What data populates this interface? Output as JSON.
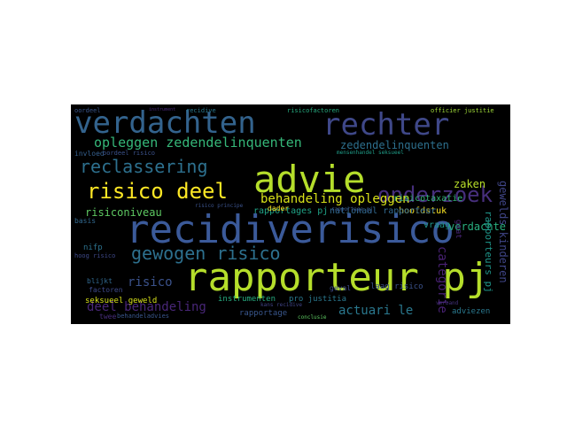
{
  "cloud": {
    "background": "#000000",
    "words": [
      {
        "text": "recidiverisico",
        "color": "#3b5a9a"
      },
      {
        "text": "rapporteur pj",
        "color": "#b5de2b"
      },
      {
        "text": "advie",
        "color": "#b5de2b"
      },
      {
        "text": "rechter",
        "color": "#3f4889"
      },
      {
        "text": "verdachten",
        "color": "#33638d"
      },
      {
        "text": "onderzoek",
        "color": "#472f7d"
      },
      {
        "text": "risico deel",
        "color": "#fde725"
      },
      {
        "text": "gewogen risico",
        "color": "#2d708e"
      },
      {
        "text": "reclassering",
        "color": "#2d708e"
      },
      {
        "text": "opleggen zedendelinquenten",
        "color": "#35b779"
      },
      {
        "text": "behandeling opleggen",
        "color": "#d8e219"
      },
      {
        "text": "risiconiveau",
        "color": "#5ec962"
      },
      {
        "text": "deel behandeling",
        "color": "#482677"
      },
      {
        "text": "zaken",
        "color": "#b8de29"
      },
      {
        "text": "verdachte",
        "color": "#29af7f"
      },
      {
        "text": "zedendelinquenten",
        "color": "#2d708e"
      },
      {
        "text": "actuari le",
        "color": "#2a788e"
      },
      {
        "text": "risico",
        "color": "#3b528b"
      },
      {
        "text": "hoofdstuk",
        "color": "#fde725"
      },
      {
        "text": "nationaal rapporteur",
        "color": "#31688e"
      },
      {
        "text": "risicotaxatie",
        "color": "#35b779"
      },
      {
        "text": "vraag",
        "color": "#1f968b"
      },
      {
        "text": "rapportages pj",
        "color": "#20a386"
      },
      {
        "text": "instrumenten",
        "color": "#27ad81"
      },
      {
        "text": "pro justitia",
        "color": "#2a788e"
      },
      {
        "text": "seksueel geweld",
        "color": "#d8e219"
      },
      {
        "text": "adviezen",
        "color": "#2a788e"
      },
      {
        "text": "rapportage",
        "color": "#39568c"
      },
      {
        "text": "oordeel",
        "color": "#39568c"
      },
      {
        "text": "recidive",
        "color": "#2a788e"
      },
      {
        "text": "risicofactoren",
        "color": "#27ad81"
      },
      {
        "text": "officier justitie",
        "color": "#a0da39"
      },
      {
        "text": "categorie",
        "color": "#482173"
      },
      {
        "text": "rapporteurs pj",
        "color": "#1f968b"
      },
      {
        "text": "gewelds kinderen",
        "color": "#404688"
      },
      {
        "text": "laag risico",
        "color": "#3b528b"
      },
      {
        "text": "factoren",
        "color": "#3e4a89"
      },
      {
        "text": "blijkt",
        "color": "#31688e"
      },
      {
        "text": "basis",
        "color": "#31688e"
      },
      {
        "text": "nifp",
        "color": "#2c728e"
      },
      {
        "text": "hoog risico",
        "color": "#3e4989"
      },
      {
        "text": "invloed",
        "color": "#355f8d"
      },
      {
        "text": "oordeel risico",
        "color": "#3b528b"
      },
      {
        "text": "twee",
        "color": "#472d7b"
      },
      {
        "text": "behandeladvies",
        "color": "#39568c"
      },
      {
        "text": "conclusie",
        "color": "#5ec962"
      },
      {
        "text": "dader",
        "color": "#fde725"
      },
      {
        "text": "geval",
        "color": "#3e4a89"
      },
      {
        "text": "instrument",
        "color": "#482878"
      },
      {
        "text": "mensenhandel seksueel",
        "color": "#1f9e89"
      },
      {
        "text": "gaat",
        "color": "#482475"
      },
      {
        "text": "risico principe",
        "color": "#3b528b"
      },
      {
        "text": "rapportage pj",
        "color": "#39568c"
      },
      {
        "text": "verband",
        "color": "#46327e"
      },
      {
        "text": "kans recidive",
        "color": "#414487"
      }
    ]
  }
}
